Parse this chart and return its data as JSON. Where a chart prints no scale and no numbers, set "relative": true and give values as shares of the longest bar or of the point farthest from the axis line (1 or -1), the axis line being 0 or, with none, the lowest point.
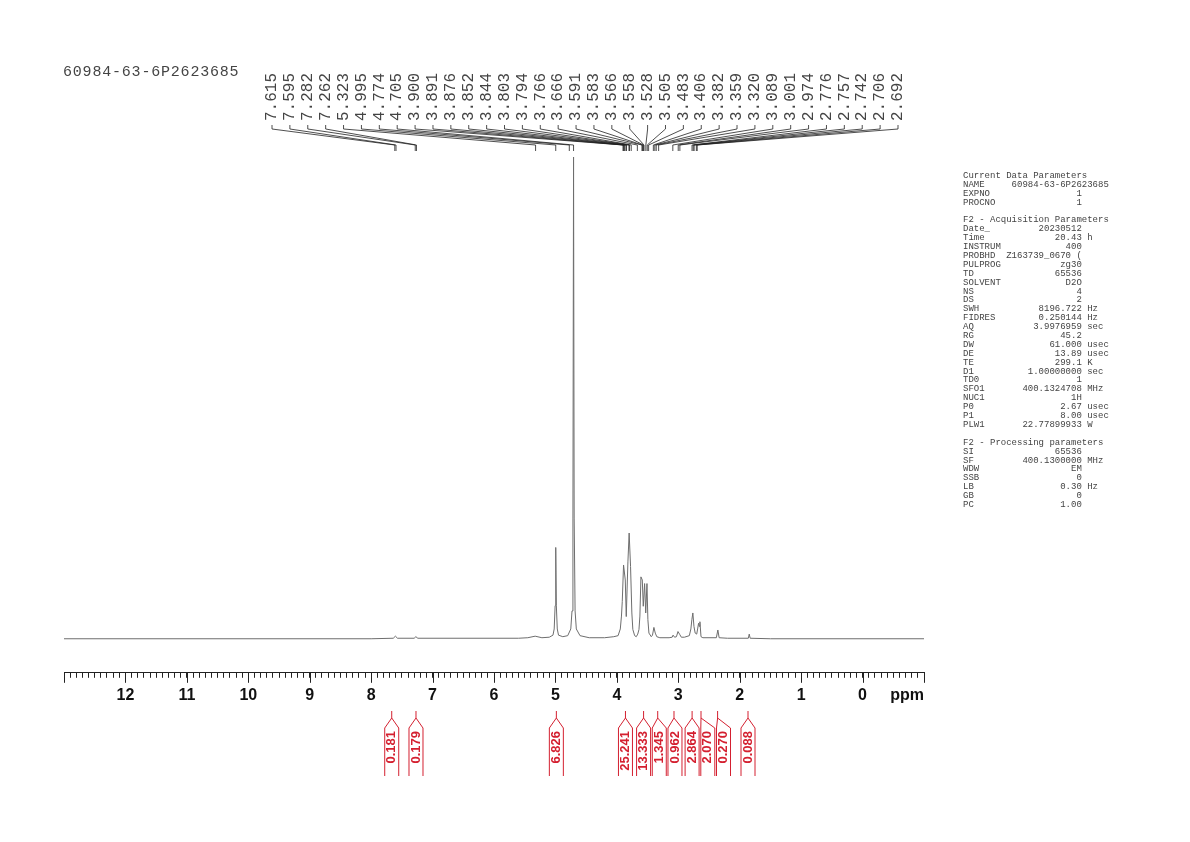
{
  "chart_data": {
    "type": "line",
    "title": "60984-63-6P2623685",
    "xlabel": "ppm",
    "relative": true,
    "color": "#6e6e6e",
    "xlim": [
      13,
      -1
    ],
    "xticks": [
      {
        "value": 13,
        "label": null
      },
      {
        "value": 12.9,
        "label": null
      },
      {
        "value": 12.8,
        "label": null
      },
      {
        "value": 12.7,
        "label": null
      },
      {
        "value": 12.6,
        "label": null
      },
      {
        "value": 12.5,
        "label": null
      },
      {
        "value": 12.4,
        "label": null
      },
      {
        "value": 12.3,
        "label": null
      },
      {
        "value": 12.2,
        "label": null
      },
      {
        "value": 12.1,
        "label": null
      },
      12,
      {
        "value": 11.9,
        "label": null
      },
      {
        "value": 11.8,
        "label": null
      },
      {
        "value": 11.7,
        "label": null
      },
      {
        "value": 11.6,
        "label": null
      },
      {
        "value": 11.5,
        "label": null
      },
      {
        "value": 11.4,
        "label": null
      },
      {
        "value": 11.3,
        "label": null
      },
      {
        "value": 11.2,
        "label": null
      },
      {
        "value": 11.1,
        "label": null
      },
      11,
      {
        "value": 10.9,
        "label": null
      },
      {
        "value": 10.8,
        "label": null
      },
      {
        "value": 10.7,
        "label": null
      },
      {
        "value": 10.6,
        "label": null
      },
      {
        "value": 10.5,
        "label": null
      },
      {
        "value": 10.4,
        "label": null
      },
      {
        "value": 10.3,
        "label": null
      },
      {
        "value": 10.2,
        "label": null
      },
      {
        "value": 10.1,
        "label": null
      },
      10,
      {
        "value": 9.9,
        "label": null
      },
      {
        "value": 9.8,
        "label": null
      },
      {
        "value": 9.7,
        "label": null
      },
      {
        "value": 9.6,
        "label": null
      },
      {
        "value": 9.5,
        "label": null
      },
      {
        "value": 9.4,
        "label": null
      },
      {
        "value": 9.3,
        "label": null
      },
      {
        "value": 9.2,
        "label": null
      },
      {
        "value": 9.1,
        "label": null
      },
      9,
      {
        "value": 8.9,
        "label": null
      },
      {
        "value": 8.8,
        "label": null
      },
      {
        "value": 8.7,
        "label": null
      },
      {
        "value": 8.6,
        "label": null
      },
      {
        "value": 8.5,
        "label": null
      },
      {
        "value": 8.4,
        "label": null
      },
      {
        "value": 8.3,
        "label": null
      },
      {
        "value": 8.2,
        "label": null
      },
      {
        "value": 8.1,
        "label": null
      },
      8,
      {
        "value": 7.9,
        "label": null
      },
      {
        "value": 7.8,
        "label": null
      },
      {
        "value": 7.7,
        "label": null
      },
      {
        "value": 7.6,
        "label": null
      },
      {
        "value": 7.5,
        "label": null
      },
      {
        "value": 7.4,
        "label": null
      },
      {
        "value": 7.3,
        "label": null
      },
      {
        "value": 7.2,
        "label": null
      },
      {
        "value": 7.1,
        "label": null
      },
      7,
      {
        "value": 6.9,
        "label": null
      },
      {
        "value": 6.8,
        "label": null
      },
      {
        "value": 6.7,
        "label": null
      },
      {
        "value": 6.6,
        "label": null
      },
      {
        "value": 6.5,
        "label": null
      },
      {
        "value": 6.4,
        "label": null
      },
      {
        "value": 6.3,
        "label": null
      },
      {
        "value": 6.2,
        "label": null
      },
      {
        "value": 6.1,
        "label": null
      },
      6,
      {
        "value": 5.9,
        "label": null
      },
      {
        "value": 5.8,
        "label": null
      },
      {
        "value": 5.7,
        "label": null
      },
      {
        "value": 5.6,
        "label": null
      },
      {
        "value": 5.5,
        "label": null
      },
      {
        "value": 5.4,
        "label": null
      },
      {
        "value": 5.3,
        "label": null
      },
      {
        "value": 5.2,
        "label": null
      },
      {
        "value": 5.1,
        "label": null
      },
      5,
      {
        "value": 4.9,
        "label": null
      },
      {
        "value": 4.8,
        "label": null
      },
      {
        "value": 4.7,
        "label": null
      },
      {
        "value": 4.6,
        "label": null
      },
      {
        "value": 4.5,
        "label": null
      },
      {
        "value": 4.4,
        "label": null
      },
      {
        "value": 4.3,
        "label": null
      },
      {
        "value": 4.2,
        "label": null
      },
      {
        "value": 4.1,
        "label": null
      },
      4,
      {
        "value": 3.9,
        "label": null
      },
      {
        "value": 3.8,
        "label": null
      },
      {
        "value": 3.7,
        "label": null
      },
      {
        "value": 3.6,
        "label": null
      },
      {
        "value": 3.5,
        "label": null
      },
      {
        "value": 3.4,
        "label": null
      },
      {
        "value": 3.3,
        "label": null
      },
      {
        "value": 3.2,
        "label": null
      },
      {
        "value": 3.1,
        "label": null
      },
      3,
      {
        "value": 2.9,
        "label": null
      },
      {
        "value": 2.8,
        "label": null
      },
      {
        "value": 2.7,
        "label": null
      },
      {
        "value": 2.6,
        "label": null
      },
      {
        "value": 2.5,
        "label": null
      },
      {
        "value": 2.4,
        "label": null
      },
      {
        "value": 2.3,
        "label": null
      },
      {
        "value": 2.2,
        "label": null
      },
      {
        "value": 2.1,
        "label": null
      },
      2,
      {
        "value": 1.9,
        "label": null
      },
      {
        "value": 1.8,
        "label": null
      },
      {
        "value": 1.7,
        "label": null
      },
      {
        "value": 1.6,
        "label": null
      },
      {
        "value": 1.5,
        "label": null
      },
      {
        "value": 1.4,
        "label": null
      },
      {
        "value": 1.3,
        "label": null
      },
      {
        "value": 1.2,
        "label": null
      },
      {
        "value": 1.1,
        "label": null
      },
      1,
      {
        "value": 0.9,
        "label": null
      },
      {
        "value": 0.8,
        "label": null
      },
      {
        "value": 0.7,
        "label": null
      },
      {
        "value": 0.6,
        "label": null
      },
      {
        "value": 0.5,
        "label": null
      },
      {
        "value": 0.4,
        "label": null
      },
      {
        "value": 0.3,
        "label": null
      },
      {
        "value": 0.2,
        "label": null
      },
      {
        "value": 0.1,
        "label": null
      },
      0,
      {
        "value": -0.1,
        "label": null
      },
      {
        "value": -0.2,
        "label": null
      },
      {
        "value": -0.3,
        "label": null
      },
      {
        "value": -0.4,
        "label": null
      },
      {
        "value": -0.5,
        "label": null
      },
      {
        "value": -0.6,
        "label": null
      },
      {
        "value": -0.7,
        "label": null
      },
      {
        "value": -0.8,
        "label": null
      },
      {
        "value": -0.9,
        "label": null
      },
      {
        "value": -1,
        "label": null
      }
    ],
    "x": [
      13,
      8.0,
      7.64,
      7.605,
      7.57,
      7.3,
      7.272,
      7.24,
      5.6,
      5.45,
      5.33,
      5.22,
      5.1,
      5.04,
      5.02,
      5.005,
      4.995,
      4.985,
      4.97,
      4.95,
      4.88,
      4.8,
      4.75,
      4.73,
      4.715,
      4.705,
      4.695,
      4.68,
      4.66,
      4.6,
      4.45,
      4.2,
      4.05,
      3.98,
      3.944,
      3.925,
      3.912,
      3.891,
      3.863,
      3.847,
      3.82,
      3.8,
      3.777,
      3.756,
      3.74,
      3.71,
      3.684,
      3.66,
      3.64,
      3.625,
      3.608,
      3.586,
      3.57,
      3.548,
      3.53,
      3.51,
      3.495,
      3.478,
      3.44,
      3.42,
      3.397,
      3.375,
      3.35,
      3.3,
      3.15,
      3.1,
      3.085,
      3.06,
      3.03,
      3.005,
      2.975,
      2.95,
      2.9,
      2.82,
      2.795,
      2.779,
      2.763,
      2.745,
      2.725,
      2.7,
      2.685,
      2.67,
      2.658,
      2.648,
      2.63,
      2.6,
      2.5,
      2.38,
      2.356,
      2.335,
      2.2,
      1.86,
      1.845,
      1.83,
      1.5,
      -1
    ],
    "values": [
      0.066,
      0.066,
      0.067,
      0.071,
      0.067,
      0.067,
      0.07,
      0.067,
      0.067,
      0.068,
      0.071,
      0.068,
      0.069,
      0.073,
      0.085,
      0.13,
      0.243,
      0.13,
      0.085,
      0.073,
      0.07,
      0.072,
      0.085,
      0.12,
      0.3,
      1.0,
      0.3,
      0.12,
      0.085,
      0.072,
      0.068,
      0.068,
      0.07,
      0.072,
      0.085,
      0.11,
      0.138,
      0.209,
      0.18,
      0.109,
      0.215,
      0.271,
      0.206,
      0.116,
      0.084,
      0.072,
      0.07,
      0.075,
      0.084,
      0.11,
      0.186,
      0.18,
      0.129,
      0.173,
      0.116,
      0.173,
      0.103,
      0.077,
      0.07,
      0.073,
      0.088,
      0.077,
      0.07,
      0.068,
      0.068,
      0.069,
      0.073,
      0.069,
      0.07,
      0.08,
      0.074,
      0.069,
      0.069,
      0.072,
      0.085,
      0.103,
      0.116,
      0.09,
      0.077,
      0.075,
      0.085,
      0.096,
      0.09,
      0.099,
      0.07,
      0.068,
      0.068,
      0.068,
      0.083,
      0.068,
      0.067,
      0.067,
      0.075,
      0.067,
      0.066,
      0.066
    ],
    "annotations": [
      {
        "text": "7.615",
        "x": 7.615
      },
      {
        "text": "7.595",
        "x": 7.595
      },
      {
        "text": "7.282",
        "x": 7.282
      },
      {
        "text": "7.262",
        "x": 7.262
      },
      {
        "text": "5.323",
        "x": 5.323
      },
      {
        "text": "4.995",
        "x": 4.995
      },
      {
        "text": "4.774",
        "x": 4.774
      },
      {
        "text": "4.705",
        "x": 4.705
      },
      {
        "text": "3.900",
        "x": 3.9
      },
      {
        "text": "3.891",
        "x": 3.891
      },
      {
        "text": "3.876",
        "x": 3.876
      },
      {
        "text": "3.852",
        "x": 3.852
      },
      {
        "text": "3.844",
        "x": 3.844
      },
      {
        "text": "3.803",
        "x": 3.803
      },
      {
        "text": "3.794",
        "x": 3.794
      },
      {
        "text": "3.766",
        "x": 3.766
      },
      {
        "text": "3.666",
        "x": 3.666
      },
      {
        "text": "3.591",
        "x": 3.591
      },
      {
        "text": "3.583",
        "x": 3.583
      },
      {
        "text": "3.566",
        "x": 3.566
      },
      {
        "text": "3.558",
        "x": 3.558
      },
      {
        "text": "3.528",
        "x": 3.528
      },
      {
        "text": "3.505",
        "x": 3.505
      },
      {
        "text": "3.483",
        "x": 3.483
      },
      {
        "text": "3.406",
        "x": 3.406
      },
      {
        "text": "3.382",
        "x": 3.382
      },
      {
        "text": "3.359",
        "x": 3.359
      },
      {
        "text": "3.320",
        "x": 3.32
      },
      {
        "text": "3.089",
        "x": 3.089
      },
      {
        "text": "3.001",
        "x": 3.001
      },
      {
        "text": "2.974",
        "x": 2.974
      },
      {
        "text": "2.776",
        "x": 2.776
      },
      {
        "text": "2.757",
        "x": 2.757
      },
      {
        "text": "2.742",
        "x": 2.742
      },
      {
        "text": "2.706",
        "x": 2.706
      },
      {
        "text": "2.692",
        "x": 2.692
      },
      "Current Data Parameters",
      "NAME     60984-63-6P2623685",
      "EXPNO                1",
      "PROCNO               1",
      "F2 - Acquisition Parameters",
      "Date_         20230512",
      "Time             20.43 h",
      "INSTRUM            400",
      "PROBHD  Z163739_0670 (",
      "PULPROG           zg30",
      "TD               65536",
      "SOLVENT            D2O",
      "NS                   4",
      "DS                   2",
      "SWH           8196.722 Hz",
      "FIDRES        0.250144 Hz",
      "AQ           3.9976959 sec",
      "RG                45.2",
      "DW              61.000 usec",
      "DE               13.89 usec",
      "TE               299.1 K",
      "D1          1.00000000 sec",
      "TD0                  1",
      "SFO1       400.1324708 MHz",
      "NUC1                1H",
      "P0                2.67 usec",
      "P1                8.00 usec",
      "PLW1       22.77899933 W",
      "F2 - Processing parameters",
      "SI               65536",
      "SF         400.1300000 MHz",
      "WDW                 EM",
      "SSB                  0",
      "LB                0.30 Hz",
      "GB                   0",
      "PC                1.00",
      {
        "text": "0.181",
        "x": 7.665
      },
      {
        "text": "0.179",
        "x": 7.27
      },
      {
        "text": "6.826",
        "x": 4.985
      },
      {
        "text": "25.241",
        "x": 3.86
      },
      {
        "text": "13.333",
        "x": 3.565
      },
      {
        "text": "1.345",
        "x": 3.335
      },
      {
        "text": "0.962",
        "x": 3.07
      },
      {
        "text": "2.864",
        "x": 2.775
      },
      {
        "text": "2.070",
        "x": 2.63
      },
      {
        "text": "0.270",
        "x": 2.36
      },
      {
        "text": "0.088",
        "x": 1.865
      }
    ]
  }
}
